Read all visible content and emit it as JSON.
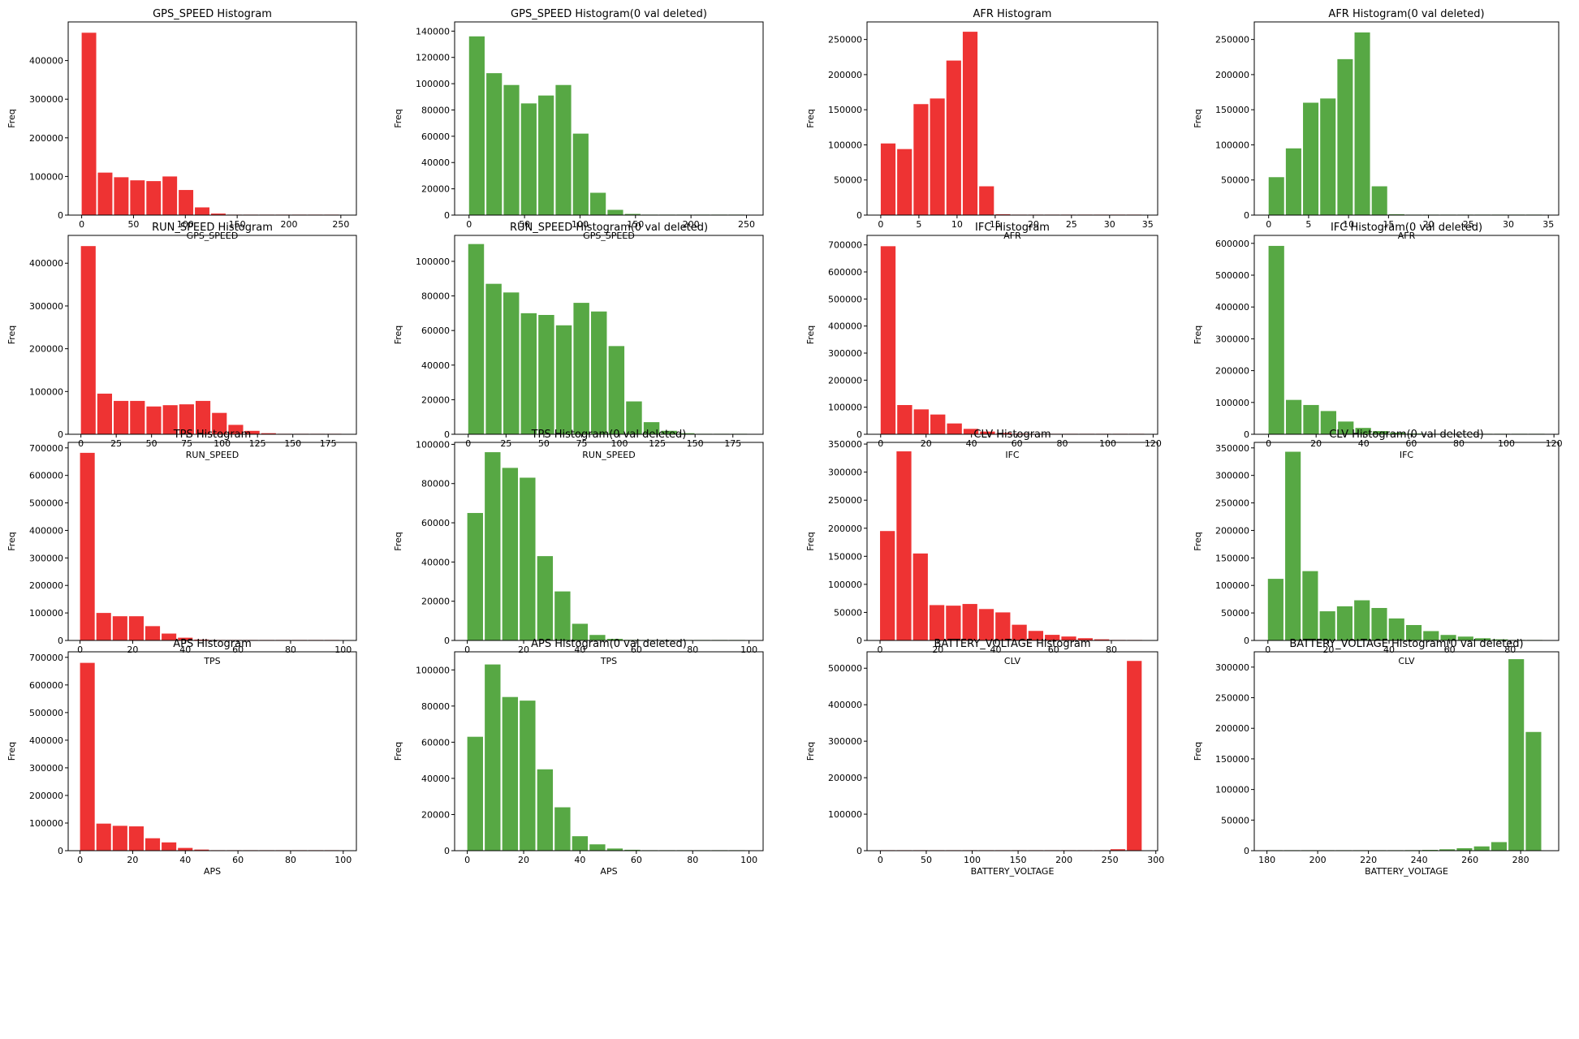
{
  "colors": {
    "red": "#ee3333",
    "green": "#57a844"
  },
  "chart_data": [
    {
      "type": "bar",
      "title": "GPS_SPEED Histogram",
      "xlabel": "GPS_SPEED",
      "ylabel": "Freq",
      "color": "red",
      "xlim": [
        -13,
        265
      ],
      "ylim": [
        0,
        500000
      ],
      "xticks": [
        0,
        50,
        100,
        150,
        200,
        250
      ],
      "yticks": [
        0,
        100000,
        200000,
        300000,
        400000
      ],
      "bin_start": 0,
      "bin_width": 15.6,
      "values": [
        472000,
        110000,
        98000,
        90000,
        88000,
        100000,
        65000,
        20000,
        4000,
        800,
        300,
        150,
        80,
        40,
        20,
        10
      ]
    },
    {
      "type": "bar",
      "title": "GPS_SPEED Histogram(0 val deleted)",
      "xlabel": "GPS_SPEED",
      "ylabel": "Freq",
      "color": "green",
      "xlim": [
        -13,
        265
      ],
      "ylim": [
        0,
        147000
      ],
      "xticks": [
        0,
        50,
        100,
        150,
        200,
        250
      ],
      "yticks": [
        0,
        20000,
        40000,
        60000,
        80000,
        100000,
        120000,
        140000
      ],
      "bin_start": 0,
      "bin_width": 15.6,
      "values": [
        136000,
        108000,
        99000,
        85000,
        91000,
        99000,
        62000,
        17000,
        4000,
        900,
        300,
        150,
        80,
        40,
        20,
        10
      ]
    },
    {
      "type": "bar",
      "title": "AFR Histogram",
      "xlabel": "AFR",
      "ylabel": "Freq",
      "color": "red",
      "xlim": [
        -1.8,
        36.3
      ],
      "ylim": [
        0,
        275000
      ],
      "xticks": [
        0,
        5,
        10,
        15,
        20,
        25,
        30,
        35
      ],
      "yticks": [
        0,
        50000,
        100000,
        150000,
        200000,
        250000
      ],
      "bin_start": 0,
      "bin_width": 2.15,
      "values": [
        102000,
        94000,
        158000,
        166000,
        220000,
        261000,
        41000,
        1200,
        300,
        100,
        50,
        20,
        10,
        5,
        3,
        2
      ]
    },
    {
      "type": "bar",
      "title": "AFR Histogram(0 val deleted)",
      "xlabel": "AFR",
      "ylabel": "Freq",
      "color": "green",
      "xlim": [
        -1.8,
        36.3
      ],
      "ylim": [
        0,
        275000
      ],
      "xticks": [
        0,
        5,
        10,
        15,
        20,
        25,
        30,
        35
      ],
      "yticks": [
        0,
        50000,
        100000,
        150000,
        200000,
        250000
      ],
      "bin_start": 0,
      "bin_width": 2.15,
      "values": [
        54000,
        95000,
        160000,
        166000,
        222000,
        260000,
        41000,
        1200,
        300,
        100,
        50,
        20,
        10,
        5,
        3,
        2
      ]
    },
    {
      "type": "bar",
      "title": "RUN_SPEED Histogram",
      "xlabel": "RUN_SPEED",
      "ylabel": "Freq",
      "color": "red",
      "xlim": [
        -9,
        195
      ],
      "ylim": [
        0,
        465000
      ],
      "xticks": [
        0,
        25,
        50,
        75,
        100,
        125,
        150,
        175
      ],
      "yticks": [
        0,
        100000,
        200000,
        300000,
        400000
      ],
      "bin_start": 0,
      "bin_width": 11.6,
      "values": [
        440000,
        95000,
        78000,
        78000,
        65000,
        68000,
        70000,
        78000,
        50000,
        22000,
        8000,
        2500,
        600,
        150,
        50,
        20
      ]
    },
    {
      "type": "bar",
      "title": "RUN_SPEED Histogram(0 val deleted)",
      "xlabel": "RUN_SPEED",
      "ylabel": "Freq",
      "color": "green",
      "xlim": [
        -9,
        195
      ],
      "ylim": [
        0,
        115000
      ],
      "xticks": [
        0,
        25,
        50,
        75,
        100,
        125,
        150,
        175
      ],
      "yticks": [
        0,
        20000,
        40000,
        60000,
        80000,
        100000
      ],
      "bin_start": 0,
      "bin_width": 11.6,
      "values": [
        110000,
        87000,
        82000,
        70000,
        69000,
        63000,
        76000,
        71000,
        51000,
        19000,
        7000,
        2000,
        600,
        150,
        50,
        20
      ]
    },
    {
      "type": "bar",
      "title": "IFC Histogram",
      "xlabel": "IFC",
      "ylabel": "Freq",
      "color": "red",
      "xlim": [
        -6,
        122
      ],
      "ylim": [
        0,
        735000
      ],
      "xticks": [
        0,
        20,
        40,
        60,
        80,
        100,
        120
      ],
      "yticks": [
        0,
        100000,
        200000,
        300000,
        400000,
        500000,
        600000,
        700000
      ],
      "bin_start": 0,
      "bin_width": 7.3,
      "values": [
        695000,
        108000,
        92000,
        73000,
        40000,
        20000,
        10000,
        5000,
        2500,
        1200,
        500,
        250,
        120,
        60,
        30,
        15
      ]
    },
    {
      "type": "bar",
      "title": "IFC Histogram(0 val deleted)",
      "xlabel": "IFC",
      "ylabel": "Freq",
      "color": "green",
      "xlim": [
        -6,
        122
      ],
      "ylim": [
        0,
        625000
      ],
      "xticks": [
        0,
        20,
        40,
        60,
        80,
        100,
        120
      ],
      "yticks": [
        0,
        100000,
        200000,
        300000,
        400000,
        500000,
        600000
      ],
      "bin_start": 0,
      "bin_width": 7.3,
      "values": [
        592000,
        108000,
        92000,
        73000,
        40000,
        20000,
        10000,
        5000,
        2500,
        1200,
        500,
        250,
        120,
        60,
        30,
        15
      ]
    },
    {
      "type": "bar",
      "title": "TPS Histogram",
      "xlabel": "TPS",
      "ylabel": "Freq",
      "color": "red",
      "xlim": [
        -4.5,
        105
      ],
      "ylim": [
        0,
        720000
      ],
      "xticks": [
        0,
        20,
        40,
        60,
        80,
        100
      ],
      "yticks": [
        0,
        100000,
        200000,
        300000,
        400000,
        500000,
        600000,
        700000
      ],
      "bin_start": 0,
      "bin_width": 6.2,
      "values": [
        682000,
        100000,
        88000,
        88000,
        52000,
        25000,
        10000,
        3000,
        1000,
        400,
        150,
        60,
        30,
        15,
        8,
        4
      ]
    },
    {
      "type": "bar",
      "title": "TPS Histogram(0 val deleted)",
      "xlabel": "TPS",
      "ylabel": "Freq",
      "color": "green",
      "xlim": [
        -4.5,
        105
      ],
      "ylim": [
        0,
        101000
      ],
      "xticks": [
        0,
        20,
        40,
        60,
        80,
        100
      ],
      "yticks": [
        0,
        20000,
        40000,
        60000,
        80000,
        100000
      ],
      "bin_start": 0,
      "bin_width": 6.2,
      "values": [
        65000,
        96000,
        88000,
        83000,
        43000,
        25000,
        8500,
        2800,
        800,
        300,
        120,
        50,
        20,
        10,
        5,
        2
      ]
    },
    {
      "type": "bar",
      "title": "CLV Histogram",
      "xlabel": "CLV",
      "ylabel": "Freq",
      "color": "red",
      "xlim": [
        -4.5,
        96
      ],
      "ylim": [
        0,
        353000
      ],
      "xticks": [
        0,
        20,
        40,
        60,
        80
      ],
      "yticks": [
        0,
        50000,
        100000,
        150000,
        200000,
        250000,
        300000,
        350000
      ],
      "bin_start": 0,
      "bin_width": 5.7,
      "values": [
        195000,
        337000,
        155000,
        63000,
        62000,
        65000,
        56000,
        50000,
        28000,
        17000,
        10000,
        7000,
        4000,
        2000,
        900,
        300
      ]
    },
    {
      "type": "bar",
      "title": "CLV Histogram(0 val deleted)",
      "xlabel": "CLV",
      "ylabel": "Freq",
      "color": "green",
      "xlim": [
        -4.5,
        96
      ],
      "ylim": [
        0,
        360000
      ],
      "xticks": [
        0,
        20,
        40,
        60,
        80
      ],
      "yticks": [
        0,
        50000,
        100000,
        150000,
        200000,
        250000,
        300000,
        350000
      ],
      "bin_start": 0,
      "bin_width": 5.7,
      "values": [
        112000,
        343000,
        126000,
        53000,
        62000,
        73000,
        59000,
        40000,
        28000,
        17000,
        10000,
        7000,
        4000,
        2000,
        900,
        300
      ]
    },
    {
      "type": "bar",
      "title": "APS Histogram",
      "xlabel": "APS",
      "ylabel": "Freq",
      "color": "red",
      "xlim": [
        -4.5,
        105
      ],
      "ylim": [
        0,
        720000
      ],
      "xticks": [
        0,
        20,
        40,
        60,
        80,
        100
      ],
      "yticks": [
        0,
        100000,
        200000,
        300000,
        400000,
        500000,
        600000,
        700000
      ],
      "bin_start": 0,
      "bin_width": 6.2,
      "values": [
        680000,
        98000,
        90000,
        88000,
        45000,
        30000,
        10000,
        4000,
        1500,
        600,
        250,
        100,
        50,
        25,
        12,
        6
      ]
    },
    {
      "type": "bar",
      "title": "APS Histogram(0 val deleted)",
      "xlabel": "APS",
      "ylabel": "Freq",
      "color": "green",
      "xlim": [
        -4.5,
        105
      ],
      "ylim": [
        0,
        110000
      ],
      "xticks": [
        0,
        20,
        40,
        60,
        80,
        100
      ],
      "yticks": [
        0,
        20000,
        40000,
        60000,
        80000,
        100000
      ],
      "bin_start": 0,
      "bin_width": 6.2,
      "values": [
        63000,
        103000,
        85000,
        83000,
        45000,
        24000,
        8000,
        3500,
        1200,
        500,
        200,
        80,
        40,
        20,
        10,
        5
      ]
    },
    {
      "type": "bar",
      "title": "BATTERY_VOLTAGE Histogram",
      "xlabel": "BATTERY_VOLTAGE",
      "ylabel": "Freq",
      "color": "red",
      "xlim": [
        -14.5,
        302
      ],
      "ylim": [
        0,
        545000
      ],
      "xticks": [
        0,
        50,
        100,
        150,
        200,
        250,
        300
      ],
      "yticks": [
        0,
        100000,
        200000,
        300000,
        400000,
        500000
      ],
      "bin_start": 0,
      "bin_width": 17.9,
      "values": [
        150,
        50,
        30,
        20,
        20,
        20,
        20,
        20,
        20,
        20,
        20,
        20,
        20,
        400,
        4000,
        520000
      ]
    },
    {
      "type": "bar",
      "title": "BATTERY_VOLTAGE Histogram(0 val deleted)",
      "xlabel": "BATTERY_VOLTAGE",
      "ylabel": "Freq",
      "color": "green",
      "xlim": [
        175,
        295
      ],
      "ylim": [
        0,
        325000
      ],
      "xticks": [
        180,
        200,
        220,
        240,
        260,
        280
      ],
      "yticks": [
        0,
        50000,
        100000,
        150000,
        200000,
        250000,
        300000
      ],
      "bin_start": 180,
      "bin_width": 6.8,
      "values": [
        100,
        150,
        200,
        250,
        300,
        400,
        500,
        600,
        900,
        1300,
        2300,
        4000,
        7000,
        14000,
        313000,
        194000
      ]
    }
  ]
}
